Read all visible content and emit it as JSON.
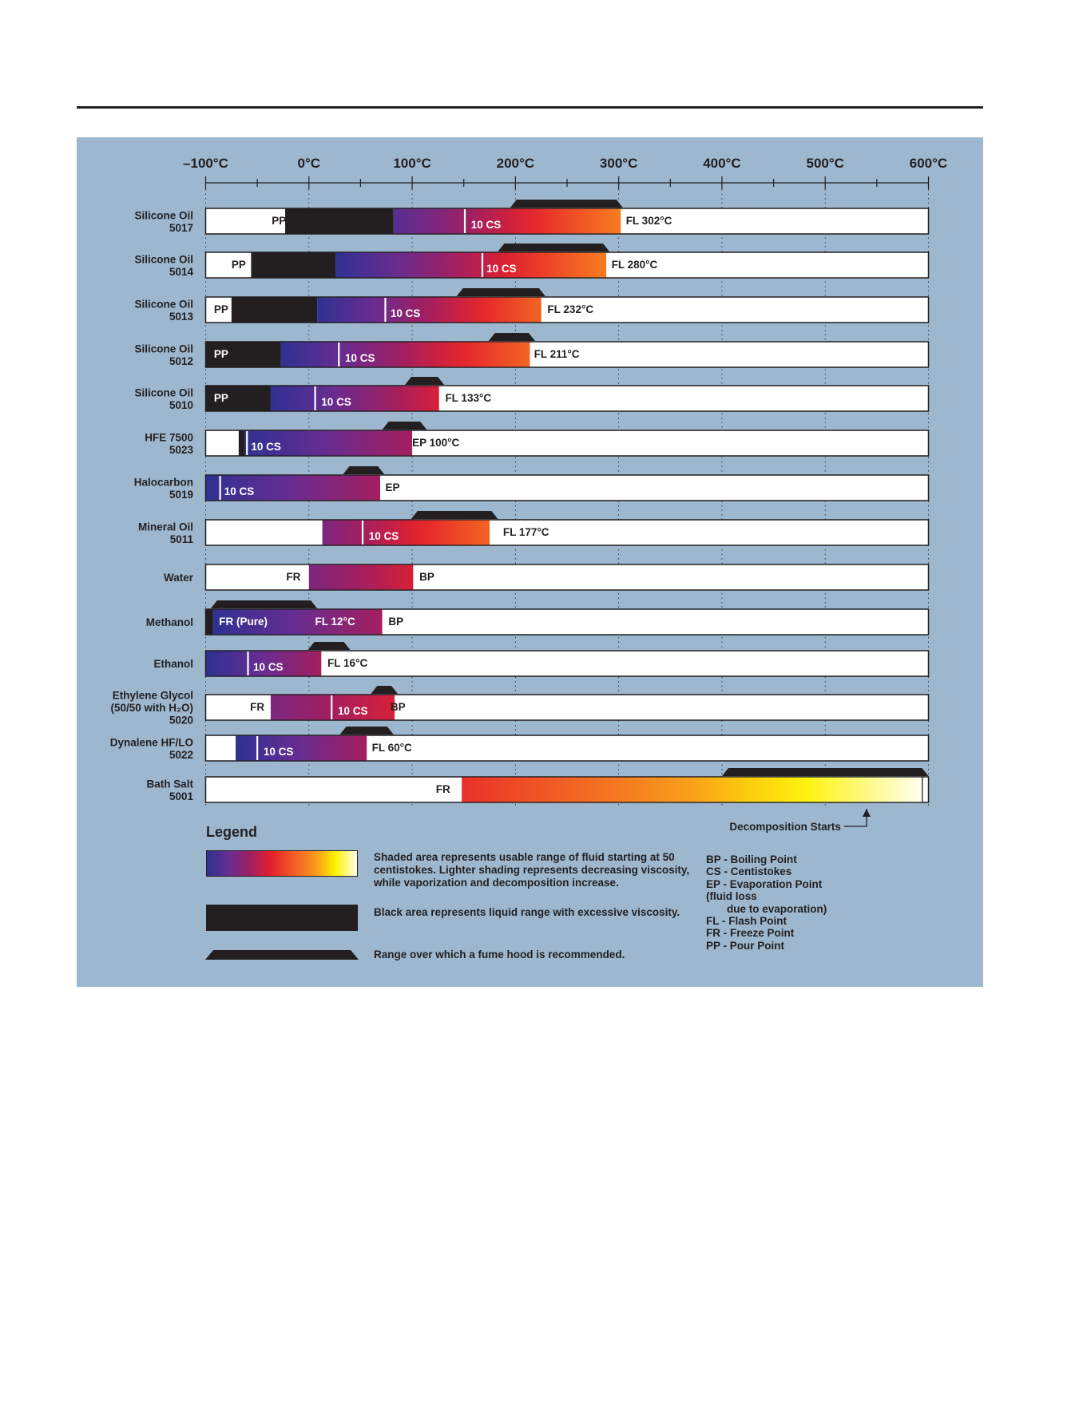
{
  "chart_data": {
    "type": "range-bar",
    "x_axis": {
      "unit": "°C",
      "min": -100,
      "max": 600,
      "ticks": [
        {
          "value": -100,
          "label": "–100°C"
        },
        {
          "value": 0,
          "label": "0°C"
        },
        {
          "value": 100,
          "label": "100°C"
        },
        {
          "value": 200,
          "label": "200°C"
        },
        {
          "value": 300,
          "label": "300°C"
        },
        {
          "value": 400,
          "label": "400°C"
        },
        {
          "value": 500,
          "label": "500°C"
        },
        {
          "value": 600,
          "label": "600°C"
        }
      ],
      "minor_ticks": [
        -50,
        50,
        150,
        250,
        350,
        450,
        550
      ]
    },
    "grid": true,
    "rows": [
      {
        "name": [
          "Silicone Oil",
          "5017"
        ],
        "black": [
          -23,
          82
        ],
        "gradient": [
          82,
          302
        ],
        "grad_start": 0.1,
        "grad_end": 0.66,
        "cs10": 151,
        "labels": [
          {
            "text": "PP",
            "x": -36,
            "white": false
          },
          {
            "text": "10 CS",
            "x": 157,
            "white": true
          },
          {
            "text": "FL 302°C",
            "x": 307,
            "white": false
          }
        ],
        "fume": [
          195,
          304
        ]
      },
      {
        "name": [
          "Silicone Oil",
          "5014"
        ],
        "black": [
          -56,
          26
        ],
        "gradient": [
          26,
          288
        ],
        "grad_start": 0,
        "grad_end": 0.66,
        "cs10": 168,
        "labels": [
          {
            "text": "PP",
            "x": -75,
            "white": false
          },
          {
            "text": "10 CS",
            "x": 172,
            "white": true
          },
          {
            "text": "FL 280°C",
            "x": 293,
            "white": false
          }
        ],
        "fume": [
          183,
          291
        ]
      },
      {
        "name": [
          "Silicone Oil",
          "5013"
        ],
        "black": [
          -75,
          8
        ],
        "gradient": [
          8,
          225
        ],
        "grad_start": 0,
        "grad_end": 0.6,
        "cs10": 74,
        "labels": [
          {
            "text": "PP",
            "x": -92,
            "white": false
          },
          {
            "text": "10 CS",
            "x": 79,
            "white": true
          },
          {
            "text": "FL 232°C",
            "x": 231,
            "white": false
          }
        ],
        "fume": [
          143,
          229
        ]
      },
      {
        "name": [
          "Silicone Oil",
          "5012"
        ],
        "black": [
          -100,
          -27
        ],
        "gradient": [
          -27,
          214
        ],
        "grad_start": 0,
        "grad_end": 0.6,
        "cs10": 29,
        "labels": [
          {
            "text": "PP",
            "x": -92,
            "white": true
          },
          {
            "text": "10 CS",
            "x": 35,
            "white": true
          },
          {
            "text": "FL 211°C",
            "x": 218,
            "white": false
          }
        ],
        "fume": [
          174,
          219
        ]
      },
      {
        "name": [
          "Silicone Oil",
          "5010"
        ],
        "black": [
          -100,
          -37
        ],
        "gradient": [
          -37,
          126
        ],
        "grad_start": 0,
        "grad_end": 0.4,
        "cs10": 6,
        "labels": [
          {
            "text": "PP",
            "x": -92,
            "white": true
          },
          {
            "text": "10 CS",
            "x": 12,
            "white": true
          },
          {
            "text": "FL 133°C",
            "x": 132,
            "white": false
          }
        ],
        "fume": [
          93,
          131
        ]
      },
      {
        "name": [
          "HFE 7500",
          "5023"
        ],
        "black": [
          -68,
          -62
        ],
        "gradient": [
          -62,
          100
        ],
        "grad_start": 0,
        "grad_end": 0.3,
        "cs10": -60,
        "labels": [
          {
            "text": "10 CS",
            "x": -56,
            "white": true
          },
          {
            "text": "EP 100°C",
            "x": 100,
            "white": false
          }
        ],
        "fume": [
          71,
          114
        ]
      },
      {
        "name": [
          "Halocarbon",
          "5019"
        ],
        "black": null,
        "gradient": [
          -100,
          69
        ],
        "grad_start": 0,
        "grad_end": 0.3,
        "cs10": -86,
        "labels": [
          {
            "text": "10 CS",
            "x": -82,
            "white": true
          },
          {
            "text": "EP",
            "x": 74,
            "white": false
          }
        ],
        "fume": [
          33,
          73
        ]
      },
      {
        "name": [
          "Mineral Oil",
          "5011"
        ],
        "black": null,
        "gradient": [
          13,
          175
        ],
        "grad_start": 0.2,
        "grad_end": 0.6,
        "cs10": 52,
        "labels": [
          {
            "text": "10 CS",
            "x": 58,
            "white": true
          },
          {
            "text": "FL 177°C",
            "x": 188,
            "white": false
          }
        ],
        "fume": [
          99,
          183
        ]
      },
      {
        "name": [
          "Water"
        ],
        "black": null,
        "gradient": [
          0,
          101
        ],
        "grad_start": 0.2,
        "grad_end": 0.4,
        "cs10": null,
        "labels": [
          {
            "text": "FR",
            "x": -22,
            "white": false
          },
          {
            "text": "BP",
            "x": 107,
            "white": false
          }
        ],
        "fume": null
      },
      {
        "name": [
          "Methanol"
        ],
        "black": [
          -100,
          -93
        ],
        "gradient": [
          -93,
          71
        ],
        "grad_start": 0,
        "grad_end": 0.3,
        "cs10": null,
        "labels": [
          {
            "text": "FR (Pure)",
            "x": -87,
            "white": true
          },
          {
            "text": "FL 12°C",
            "x": 6,
            "white": true
          },
          {
            "text": "BP",
            "x": 77,
            "white": false
          }
        ],
        "fume": [
          -95,
          8
        ]
      },
      {
        "name": [
          "Ethanol"
        ],
        "black": null,
        "gradient": [
          -100,
          12
        ],
        "grad_start": 0,
        "grad_end": 0.3,
        "cs10": -59,
        "labels": [
          {
            "text": "10 CS",
            "x": -54,
            "white": true
          },
          {
            "text": "FL 16°C",
            "x": 18,
            "white": false
          }
        ],
        "fume": [
          -1,
          40
        ]
      },
      {
        "name": [
          "Ethylene Glycol",
          "(50/50 with H₂O)",
          "5020"
        ],
        "black": null,
        "gradient": [
          -37,
          83
        ],
        "grad_start": 0.2,
        "grad_end": 0.4,
        "cs10": 22,
        "labels": [
          {
            "text": "FR",
            "x": -57,
            "white": false
          },
          {
            "text": "10 CS",
            "x": 28,
            "white": true
          },
          {
            "text": "BP",
            "x": 79,
            "white": false
          }
        ],
        "fume": [
          60,
          86
        ]
      },
      {
        "name": [
          "Dynalene HF/LO",
          "5022"
        ],
        "black": null,
        "gradient": [
          -71,
          56
        ],
        "grad_start": 0,
        "grad_end": 0.3,
        "cs10": -50,
        "labels": [
          {
            "text": "10 CS",
            "x": -44,
            "white": true
          },
          {
            "text": "FL 60°C",
            "x": 61,
            "white": false
          }
        ],
        "fume": [
          30,
          82
        ]
      },
      {
        "name": [
          "Bath Salt",
          "5001"
        ],
        "black": null,
        "gradient": [
          148,
          594
        ],
        "grad_start": 0.47,
        "grad_end": 1,
        "cs10": null,
        "labels": [
          {
            "text": "FR",
            "x": 123,
            "white": false
          }
        ],
        "fume": [
          400,
          600
        ]
      }
    ],
    "annotation": {
      "text": "Decomposition Starts",
      "x": 540
    }
  },
  "legend": {
    "title": "Legend",
    "items": [
      {
        "text": "Shaded area represents usable range of fluid starting at 50 centistokes. Lighter shading represents decreasing viscosity, while vaporization and decomposition increase."
      },
      {
        "text": "Black  area represents liquid range with excessive viscosity."
      },
      {
        "text": "Range over which a fume hood is recommended."
      }
    ],
    "abbreviations": [
      "BP - Boiling Point",
      "CS - Centistokes",
      "EP - Evaporation Point",
      "(fluid loss",
      "due to evaporation)",
      "FL - Flash Point",
      "FR - Freeze Point",
      "PP - Pour Point"
    ]
  },
  "colors": {
    "panel": "#9db7cf",
    "black": "#231f20",
    "gradient": [
      "#2e3192",
      "#662d91",
      "#9e1f63",
      "#e4202c",
      "#f15a24",
      "#f7931e",
      "#fff200",
      "#fffff0"
    ]
  }
}
